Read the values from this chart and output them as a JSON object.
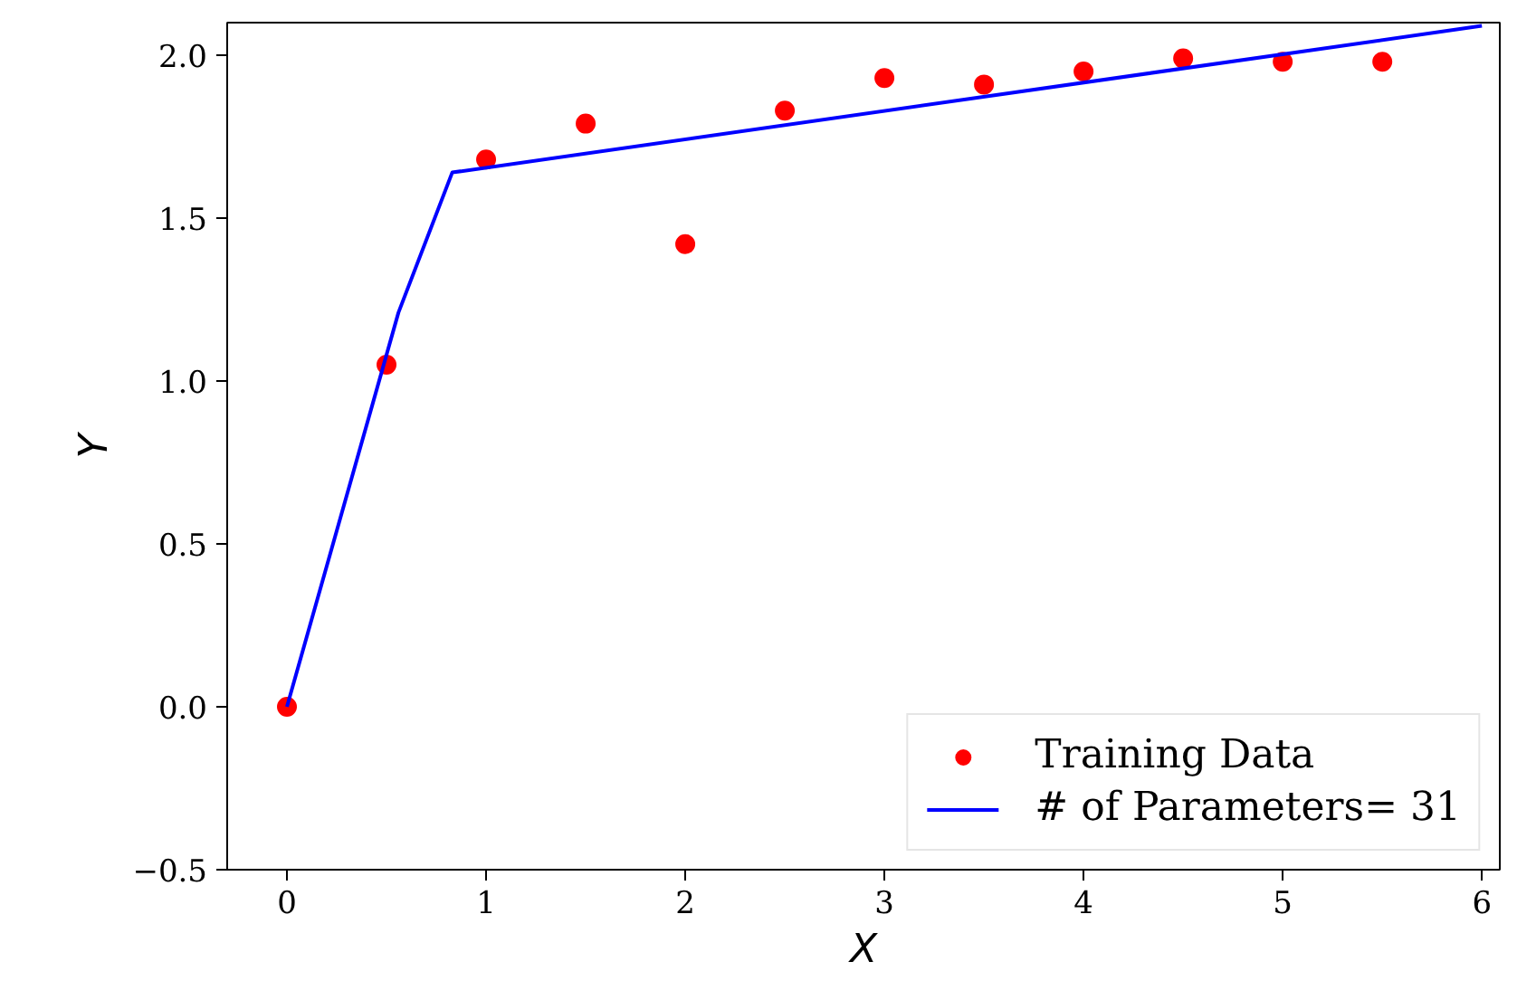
{
  "chart_data": {
    "type": "scatter",
    "xlabel": "X",
    "ylabel": "Y",
    "xlim": [
      -0.3,
      6.09
    ],
    "ylim": [
      -0.5,
      2.1
    ],
    "xticks": [
      0,
      1,
      2,
      3,
      4,
      5,
      6
    ],
    "yticks": [
      {
        "value": -0.5,
        "label": "−0.5"
      },
      {
        "value": 0,
        "label": "0.0"
      },
      {
        "value": 0.5,
        "label": "0.5"
      },
      {
        "value": 1,
        "label": "1.0"
      },
      {
        "value": 1.5,
        "label": "1.5"
      },
      {
        "value": 2,
        "label": "2.0"
      }
    ],
    "grid": false,
    "legend": "bottom right",
    "series": [
      {
        "name": "Training Data",
        "color": "#ff0000",
        "marker": "circle",
        "x": [
          0,
          0.5,
          1,
          1.5,
          2,
          2.5,
          3,
          3.5,
          4,
          4.5,
          5,
          5.5
        ],
        "values": [
          0,
          1.05,
          1.68,
          1.79,
          1.42,
          1.83,
          1.93,
          1.91,
          1.95,
          1.99,
          1.98,
          1.98
        ]
      },
      {
        "name": "# of Parameters= 31",
        "type": "line",
        "color": "#0000ff",
        "line_style": "solid",
        "x": [
          0,
          0.56,
          0.83,
          6
        ],
        "values": [
          0,
          1.21,
          1.64,
          2.09
        ]
      }
    ]
  }
}
